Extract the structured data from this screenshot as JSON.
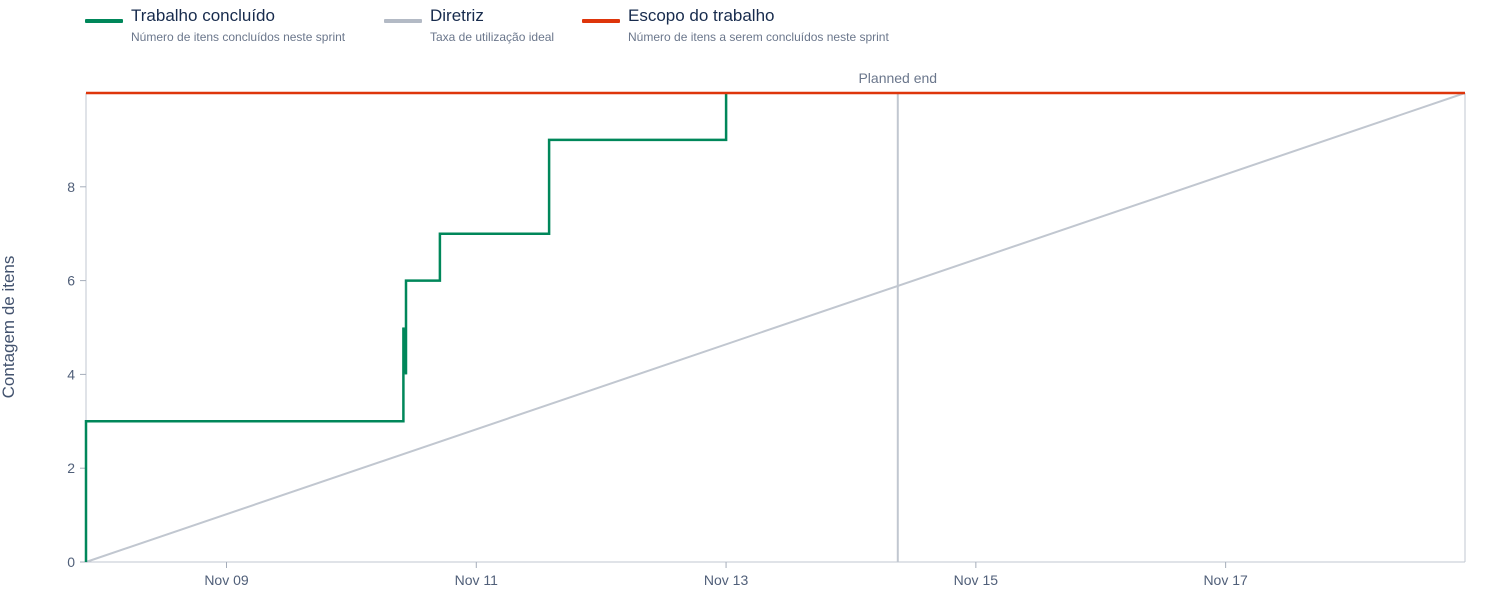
{
  "legend": [
    {
      "title": "Trabalho concluído",
      "desc": "Número de itens concluídos neste sprint",
      "color": "#00875a"
    },
    {
      "title": "Diretriz",
      "desc": "Taxa de utilização ideal",
      "color": "#b3bac5"
    },
    {
      "title": "Escopo do trabalho",
      "desc": "Número de itens a serem concluídos neste sprint",
      "color": "#de350b"
    }
  ],
  "chart_data": {
    "type": "line",
    "ylabel": "Contagem de itens",
    "ylim": [
      0,
      10
    ],
    "y_ticks": [
      0,
      2,
      4,
      6,
      8
    ],
    "x_range": [
      "2023-11-07T21:00",
      "2023-11-18T22:00"
    ],
    "x_ticks": [
      {
        "label": "Nov 09",
        "x": "2023-11-09T00:00"
      },
      {
        "label": "Nov 11",
        "x": "2023-11-11T00:00"
      },
      {
        "label": "Nov 13",
        "x": "2023-11-13T00:00"
      },
      {
        "label": "Nov 15",
        "x": "2023-11-15T00:00"
      },
      {
        "label": "Nov 17",
        "x": "2023-11-17T00:00"
      }
    ],
    "grid": false,
    "markers": [
      {
        "label": "Planned end",
        "x": "2023-11-14T09:00",
        "color": "#c1c7d0"
      }
    ],
    "series": [
      {
        "name": "Trabalho concluído",
        "color": "#00875a",
        "step": true,
        "points": [
          {
            "x": "2023-11-07T21:00",
            "y": 0
          },
          {
            "x": "2023-11-07T21:00",
            "y": 3
          },
          {
            "x": "2023-11-10T10:00",
            "y": 3
          },
          {
            "x": "2023-11-10T10:00",
            "y": 5
          },
          {
            "x": "2023-11-10T10:30",
            "y": 4
          },
          {
            "x": "2023-11-10T10:30",
            "y": 6
          },
          {
            "x": "2023-11-10T17:00",
            "y": 6
          },
          {
            "x": "2023-11-10T17:00",
            "y": 7
          },
          {
            "x": "2023-11-11T14:00",
            "y": 7
          },
          {
            "x": "2023-11-11T14:00",
            "y": 9
          },
          {
            "x": "2023-11-13T00:00",
            "y": 9
          },
          {
            "x": "2023-11-13T00:00",
            "y": 10
          }
        ]
      },
      {
        "name": "Diretriz",
        "color": "#c1c7d0",
        "points": [
          {
            "x": "2023-11-07T21:00",
            "y": 0
          },
          {
            "x": "2023-11-18T22:00",
            "y": 10
          }
        ]
      },
      {
        "name": "Escopo do trabalho",
        "color": "#de350b",
        "points": [
          {
            "x": "2023-11-07T21:00",
            "y": 10
          },
          {
            "x": "2023-11-18T22:00",
            "y": 10
          }
        ]
      }
    ]
  }
}
